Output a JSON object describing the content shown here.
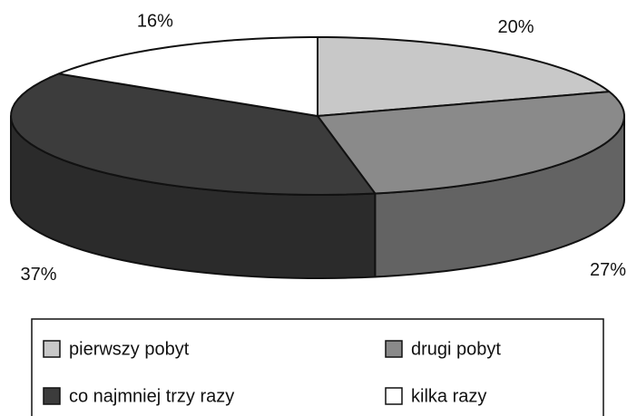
{
  "chart_data": {
    "type": "pie3d",
    "categories": [
      "pierwszy pobyt",
      "drugi pobyt",
      "co najmniej trzy razy",
      "kilka razy"
    ],
    "values": [
      20,
      27,
      37,
      16
    ],
    "value_labels": [
      "20%",
      "27%",
      "37%",
      "16%"
    ],
    "colors": [
      "#c8c8c8",
      "#8a8a8a",
      "#3c3c3c",
      "#ffffff"
    ],
    "legend": "bottom"
  }
}
